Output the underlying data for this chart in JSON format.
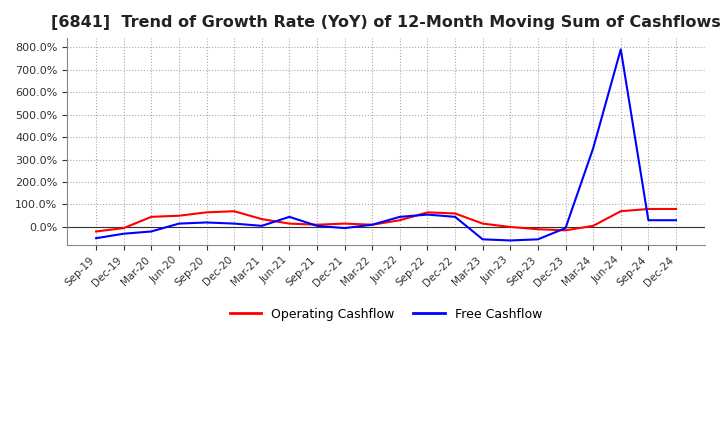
{
  "title": "[6841]  Trend of Growth Rate (YoY) of 12-Month Moving Sum of Cashflows",
  "title_fontsize": 11.5,
  "ylim": [
    -80,
    840
  ],
  "yticks": [
    0,
    100,
    200,
    300,
    400,
    500,
    600,
    700,
    800
  ],
  "legend_labels": [
    "Operating Cashflow",
    "Free Cashflow"
  ],
  "legend_colors": [
    "red",
    "blue"
  ],
  "x_labels": [
    "Sep-19",
    "Dec-19",
    "Mar-20",
    "Jun-20",
    "Sep-20",
    "Dec-20",
    "Mar-21",
    "Jun-21",
    "Sep-21",
    "Dec-21",
    "Mar-22",
    "Jun-22",
    "Sep-22",
    "Dec-22",
    "Mar-23",
    "Jun-23",
    "Sep-23",
    "Dec-23",
    "Mar-24",
    "Jun-24",
    "Sep-24",
    "Dec-24"
  ],
  "operating_cashflow": [
    -20,
    -5,
    45,
    50,
    65,
    70,
    35,
    15,
    10,
    15,
    10,
    30,
    65,
    60,
    15,
    0,
    -10,
    -15,
    5,
    70,
    80,
    80
  ],
  "free_cashflow": [
    -50,
    -30,
    -20,
    15,
    20,
    15,
    5,
    45,
    5,
    -5,
    10,
    45,
    55,
    45,
    -55,
    -60,
    -55,
    -5,
    350,
    790,
    30,
    30
  ],
  "grid_color": "#aaaaaa",
  "grid_linestyle": ":",
  "background_color": "#ffffff",
  "line_width": 1.5,
  "zero_line_color": "#333333"
}
